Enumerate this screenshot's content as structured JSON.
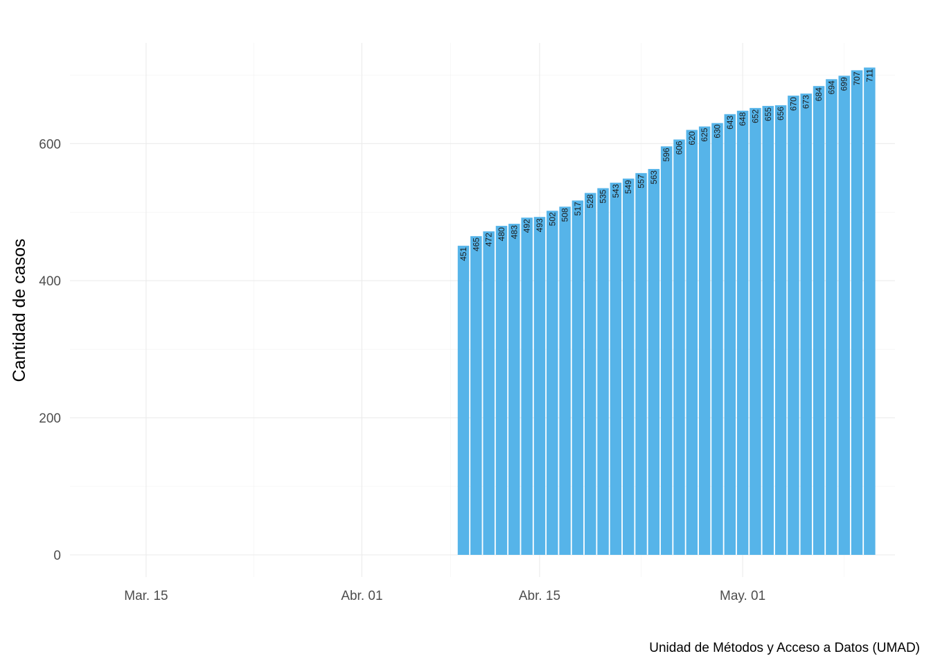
{
  "chart_data": {
    "type": "bar",
    "title": "",
    "xlabel": "",
    "ylabel": "Cantidad de casos",
    "caption": "Unidad de Métodos y Acceso a Datos (UMAD)",
    "bar_color": "#56B4E9",
    "grid": true,
    "xlim": [
      "2020-03-09",
      "2020-05-13"
    ],
    "ylim": [
      0,
      711
    ],
    "y_ticks": [
      0,
      200,
      400,
      600
    ],
    "x_ticks": [
      {
        "date": "2020-03-15",
        "label": "Mar. 15"
      },
      {
        "date": "2020-04-01",
        "label": "Abr. 01"
      },
      {
        "date": "2020-04-15",
        "label": "Abr. 15"
      },
      {
        "date": "2020-05-01",
        "label": "May. 01"
      }
    ],
    "x": [
      "2020-04-09",
      "2020-04-10",
      "2020-04-11",
      "2020-04-12",
      "2020-04-13",
      "2020-04-14",
      "2020-04-15",
      "2020-04-16",
      "2020-04-17",
      "2020-04-18",
      "2020-04-19",
      "2020-04-20",
      "2020-04-21",
      "2020-04-22",
      "2020-04-23",
      "2020-04-24",
      "2020-04-25",
      "2020-04-26",
      "2020-04-27",
      "2020-04-28",
      "2020-04-29",
      "2020-04-30",
      "2020-05-01",
      "2020-05-02",
      "2020-05-03",
      "2020-05-04",
      "2020-05-05",
      "2020-05-06",
      "2020-05-07",
      "2020-05-08",
      "2020-05-09",
      "2020-05-10",
      "2020-05-11"
    ],
    "values": [
      451,
      465,
      472,
      480,
      483,
      492,
      493,
      502,
      508,
      517,
      528,
      535,
      543,
      549,
      557,
      563,
      596,
      606,
      620,
      625,
      630,
      643,
      648,
      652,
      655,
      656,
      670,
      673,
      684,
      694,
      699,
      707,
      711
    ]
  }
}
